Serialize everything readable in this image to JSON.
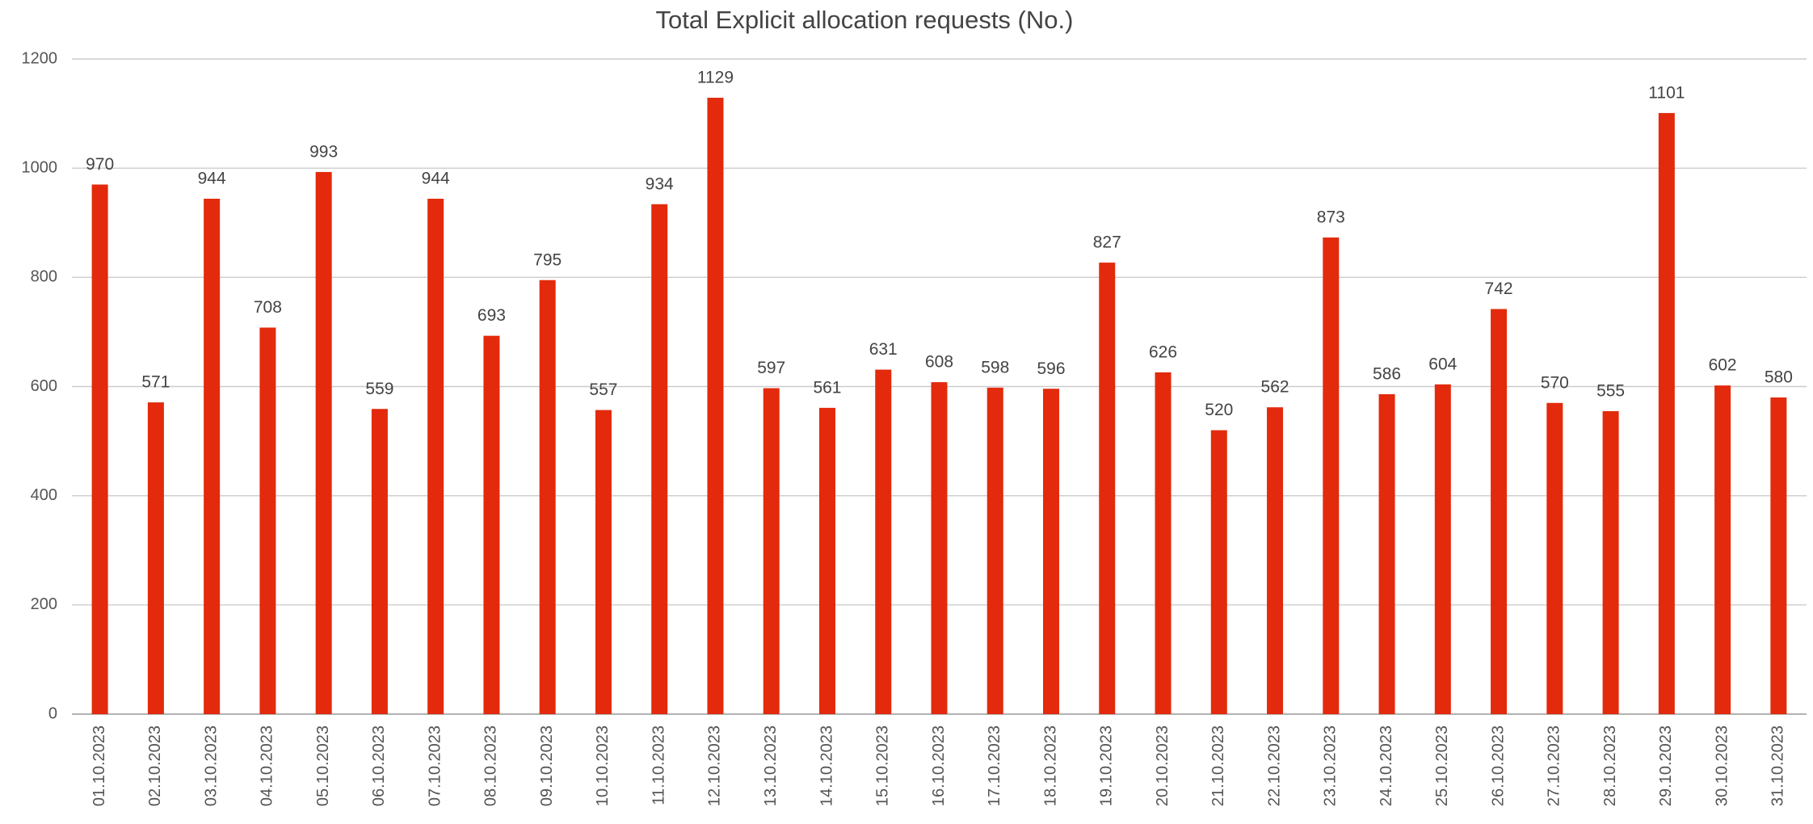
{
  "chart_data": {
    "type": "bar",
    "title": "Total Explicit allocation requests (No.)",
    "categories": [
      "01.10.2023",
      "02.10.2023",
      "03.10.2023",
      "04.10.2023",
      "05.10.2023",
      "06.10.2023",
      "07.10.2023",
      "08.10.2023",
      "09.10.2023",
      "10.10.2023",
      "11.10.2023",
      "12.10.2023",
      "13.10.2023",
      "14.10.2023",
      "15.10.2023",
      "16.10.2023",
      "17.10.2023",
      "18.10.2023",
      "19.10.2023",
      "20.10.2023",
      "21.10.2023",
      "22.10.2023",
      "23.10.2023",
      "24.10.2023",
      "25.10.2023",
      "26.10.2023",
      "27.10.2023",
      "28.10.2023",
      "29.10.2023",
      "30.10.2023",
      "31.10.2023"
    ],
    "values": [
      970,
      571,
      944,
      708,
      993,
      559,
      944,
      693,
      795,
      557,
      934,
      1129,
      597,
      561,
      631,
      608,
      598,
      596,
      827,
      626,
      520,
      562,
      873,
      586,
      604,
      742,
      570,
      555,
      1101,
      602,
      580
    ],
    "color": "#e32a0c",
    "ylim": [
      0,
      1200
    ],
    "yticks": [
      0,
      200,
      400,
      600,
      800,
      1000,
      1200
    ],
    "grid": true
  }
}
